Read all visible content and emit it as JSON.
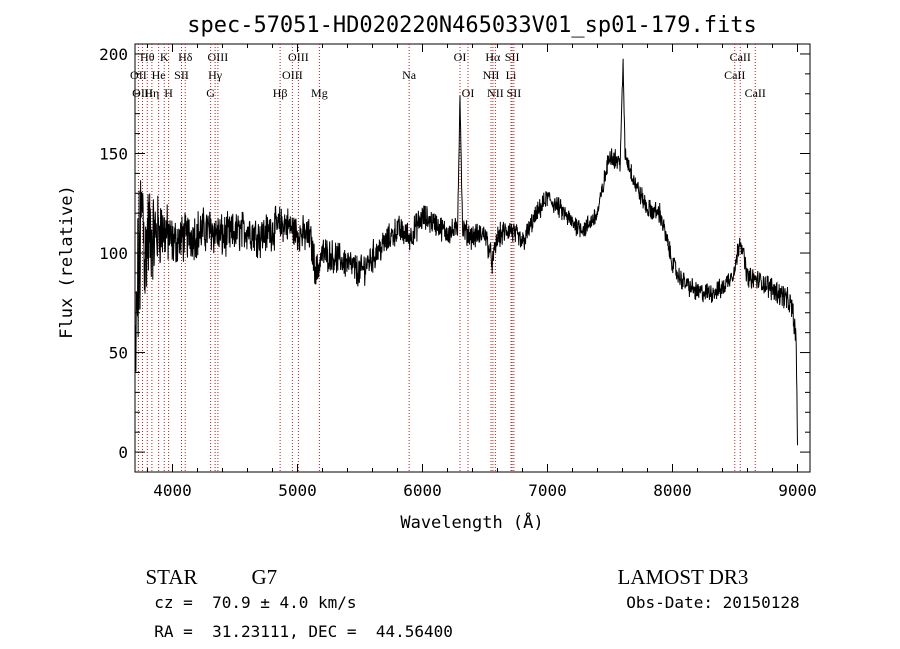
{
  "chart_data": {
    "type": "line",
    "title": "spec-57051-HD020220N465033V01_sp01-179.fits",
    "xlabel": "Wavelength (Å)",
    "ylabel": "Flux (relative)",
    "xlim": [
      3700,
      9100
    ],
    "ylim": [
      -10,
      205
    ],
    "xticks": [
      4000,
      5000,
      6000,
      7000,
      8000,
      9000
    ],
    "xtick_labels": [
      "4000",
      "5000",
      "6000",
      "7000",
      "8000",
      "9000"
    ],
    "yticks": [
      0,
      50,
      100,
      150,
      200
    ],
    "ytick_labels": [
      "0",
      "50",
      "100",
      "150",
      "200"
    ],
    "grid": false,
    "legend": "none",
    "line_color": "#000000",
    "marker_line_color": "#b22222",
    "spectrum_outline": {
      "x": [
        3700,
        3720,
        3740,
        3760,
        3780,
        3800,
        3850,
        3900,
        3950,
        4000,
        4100,
        4200,
        4300,
        4400,
        4500,
        4600,
        4700,
        4800,
        4900,
        5000,
        5100,
        5150,
        5200,
        5300,
        5400,
        5500,
        5600,
        5700,
        5800,
        5900,
        6000,
        6100,
        6200,
        6280,
        6300,
        6320,
        6400,
        6500,
        6560,
        6600,
        6700,
        6800,
        6900,
        7000,
        7100,
        7200,
        7300,
        7400,
        7500,
        7580,
        7605,
        7620,
        7700,
        7800,
        7900,
        8000,
        8050,
        8100,
        8200,
        8300,
        8400,
        8500,
        8540,
        8600,
        8700,
        8800,
        8900,
        8960,
        8990,
        9000
      ],
      "y": [
        35,
        80,
        100,
        125,
        95,
        110,
        108,
        112,
        110,
        105,
        108,
        110,
        112,
        108,
        110,
        112,
        108,
        112,
        115,
        110,
        108,
        90,
        100,
        98,
        95,
        90,
        98,
        105,
        112,
        108,
        118,
        115,
        110,
        112,
        180,
        112,
        108,
        110,
        95,
        108,
        112,
        105,
        118,
        128,
        122,
        115,
        112,
        120,
        150,
        145,
        195,
        150,
        135,
        122,
        120,
        95,
        88,
        85,
        80,
        80,
        82,
        92,
        108,
        88,
        86,
        82,
        78,
        72,
        55,
        0
      ],
      "noise": [
        40,
        40,
        40,
        35,
        30,
        26,
        22,
        18,
        15,
        12,
        12,
        12,
        11,
        11,
        10,
        10,
        10,
        10,
        9,
        9,
        9,
        9,
        8,
        8,
        8,
        8,
        8,
        7,
        7,
        7,
        7,
        6,
        6,
        6,
        3,
        6,
        6,
        6,
        6,
        6,
        6,
        6,
        5,
        5,
        5,
        5,
        5,
        5,
        5,
        5,
        3,
        5,
        5,
        5,
        5,
        5,
        5,
        5,
        5,
        5,
        5,
        5,
        5,
        5,
        5,
        6,
        6,
        6,
        8,
        8
      ]
    },
    "line_markers": [
      {
        "label": "Hθ",
        "x": 3798,
        "row": 1
      },
      {
        "label": "OII",
        "x": 3727,
        "row": 2
      },
      {
        "label": "OIII",
        "x": 3760,
        "row": 3
      },
      {
        "label": "Hη",
        "x": 3835,
        "row": 3
      },
      {
        "label": "He",
        "x": 3889,
        "row": 2
      },
      {
        "label": "K",
        "x": 3934,
        "row": 1
      },
      {
        "label": "H",
        "x": 3969,
        "row": 3
      },
      {
        "label": "SII",
        "x": 4072,
        "row": 2
      },
      {
        "label": "Hδ",
        "x": 4102,
        "row": 1
      },
      {
        "label": "OIII",
        "x": 4363,
        "row": 1
      },
      {
        "label": "Hγ",
        "x": 4341,
        "row": 2
      },
      {
        "label": "G",
        "x": 4305,
        "row": 3
      },
      {
        "label": "Hβ",
        "x": 4861,
        "row": 3
      },
      {
        "label": "OIII",
        "x": 5007,
        "row": 1
      },
      {
        "label": "OIII",
        "x": 4959,
        "row": 2
      },
      {
        "label": "Mg",
        "x": 5175,
        "row": 3
      },
      {
        "label": "Na",
        "x": 5893,
        "row": 2
      },
      {
        "label": "OI",
        "x": 6300,
        "row": 1
      },
      {
        "label": "OI",
        "x": 6364,
        "row": 3
      },
      {
        "label": "Hα",
        "x": 6563,
        "row": 1
      },
      {
        "label": "NII",
        "x": 6548,
        "row": 2
      },
      {
        "label": "NII",
        "x": 6583,
        "row": 3
      },
      {
        "label": "SII",
        "x": 6717,
        "row": 1
      },
      {
        "label": "Li",
        "x": 6708,
        "row": 2
      },
      {
        "label": "SII",
        "x": 6731,
        "row": 3
      },
      {
        "label": "CaII",
        "x": 8542,
        "row": 1
      },
      {
        "label": "CaII",
        "x": 8498,
        "row": 2
      },
      {
        "label": "CaII",
        "x": 8662,
        "row": 3
      }
    ]
  },
  "info": {
    "object_class": "STAR",
    "subclass": "G7",
    "redshift": "cz =  70.9 ± 4.0 km/s",
    "coords": "RA =  31.23111, DEC =  44.56400",
    "survey": "LAMOST DR3",
    "obs_date": "Obs-Date: 20150128"
  }
}
